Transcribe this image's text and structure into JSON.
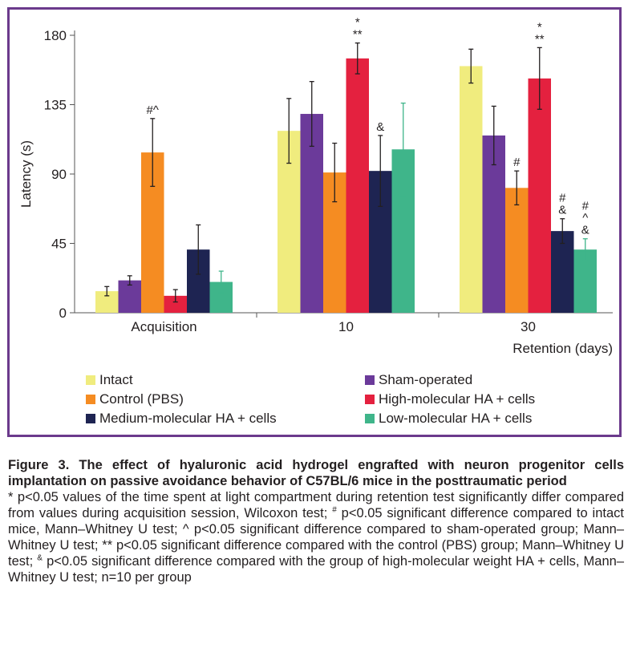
{
  "chart_data": {
    "type": "bar",
    "ylabel": "Latency (s)",
    "xlabel": "Retention (days)",
    "ylim": [
      0,
      180
    ],
    "yticks": [
      0,
      45,
      90,
      135,
      180
    ],
    "grid": false,
    "legend_position": "bottom",
    "categories": [
      "Acquisition",
      "10",
      "30"
    ],
    "series": [
      {
        "name": "Intact",
        "color": "#f0ec7e",
        "values": [
          14,
          118,
          160
        ],
        "errors": [
          3,
          21,
          11
        ],
        "annotations": [
          "",
          "",
          ""
        ]
      },
      {
        "name": "Sham-operated",
        "color": "#6b3a9a",
        "values": [
          21,
          129,
          115
        ],
        "errors": [
          3,
          21,
          19
        ],
        "annotations": [
          "",
          "",
          ""
        ]
      },
      {
        "name": "Control (PBS)",
        "color": "#f58c22",
        "values": [
          104,
          91,
          81
        ],
        "errors": [
          22,
          19,
          11
        ],
        "annotations": [
          "#^",
          "",
          "#"
        ]
      },
      {
        "name": "High-molecular HA + cells",
        "color": "#e4213f",
        "values": [
          11,
          165,
          152
        ],
        "errors": [
          4,
          10,
          20
        ],
        "annotations": [
          "",
          "*\n**",
          "*\n**"
        ]
      },
      {
        "name": "Medium-molecular HA + cells",
        "color": "#1e2452",
        "values": [
          41,
          92,
          53
        ],
        "errors": [
          16,
          23,
          8
        ],
        "annotations": [
          "",
          "&",
          "#\n&"
        ]
      },
      {
        "name": "Low-molecular HA + cells",
        "color": "#3fb58a",
        "values": [
          20,
          106,
          41
        ],
        "errors": [
          7,
          30,
          7
        ],
        "annotations": [
          "",
          "",
          "#\n^\n&"
        ]
      }
    ]
  },
  "caption": {
    "title": "Figure 3. The effect of hyaluronic acid hydrogel engrafted with neuron progenitor cells implantation on passive avoidance behavior of C57BL/6 mice in the posttraumatic period",
    "note_1": "* p<0.05 values of the time spent at light compartment during retention test significantly differ compared from values during acquisition session, Wilcoxon test;",
    "note_2_mark": "#",
    "note_2": " p<0.05 significant difference compared to intact mice, Mann–Whitney U test; ^ p<0.05 significant difference compared to sham-operated group; Mann–Whitney U test; ** p<0.05 significant difference compared with the control (PBS) group; Mann–Whitney U test;",
    "note_3_mark": "&",
    "note_3": " p<0.05 significant difference compared with the group of high-molecular weight HA + cells, Mann–Whitney U test; n=10 per group"
  }
}
